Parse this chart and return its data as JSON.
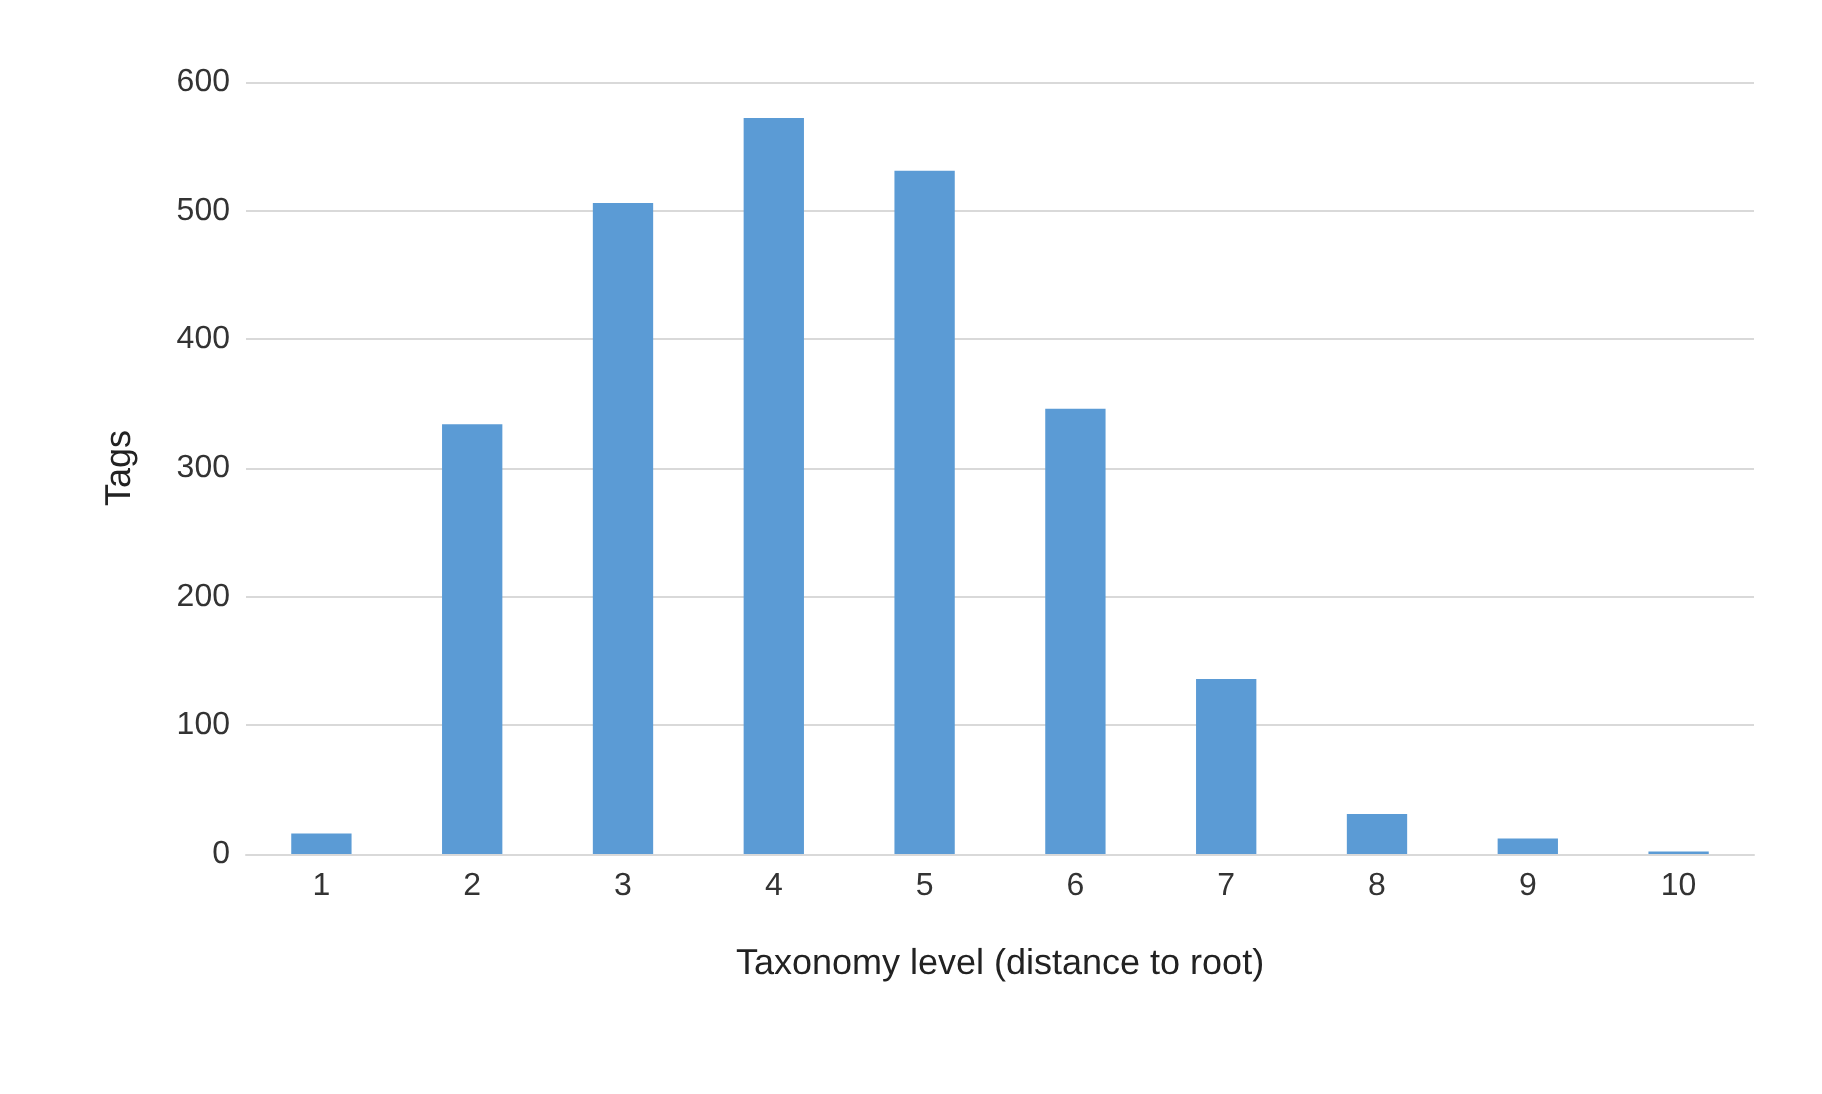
{
  "chart_data": {
    "type": "bar",
    "xlabel": "Taxonomy level (distance to root)",
    "ylabel": "Tags",
    "categories": [
      "1",
      "2",
      "3",
      "4",
      "5",
      "6",
      "7",
      "8",
      "9",
      "10"
    ],
    "values": [
      16,
      334,
      506,
      572,
      531,
      346,
      136,
      31,
      12,
      2
    ],
    "color": "#5b9bd5",
    "ylim": [
      0,
      600
    ],
    "yticks": [
      0,
      100,
      200,
      300,
      400,
      500,
      600
    ],
    "grid": "y"
  }
}
